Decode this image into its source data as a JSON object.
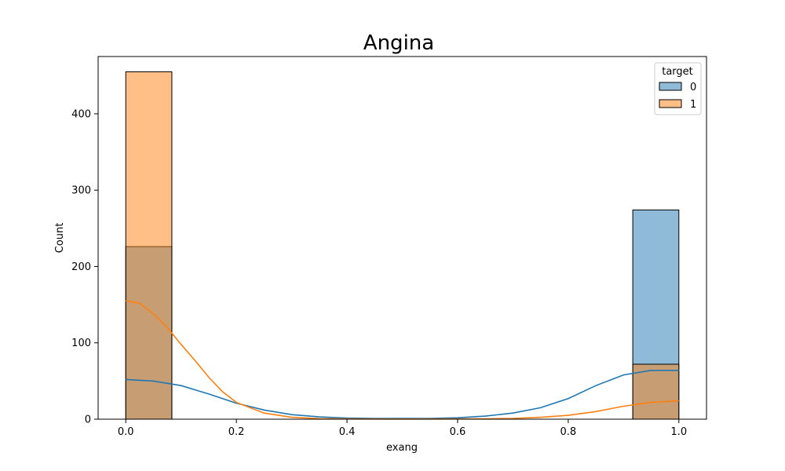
{
  "chart_data": {
    "type": "bar",
    "title": "Angina",
    "xlabel": "exang",
    "ylabel": "Count",
    "xlim": [
      -0.05,
      1.05
    ],
    "ylim": [
      0,
      475
    ],
    "xticks": [
      "0.0",
      "0.2",
      "0.4",
      "0.6",
      "0.8",
      "1.0"
    ],
    "xtick_values": [
      0.0,
      0.2,
      0.4,
      0.6,
      0.8,
      1.0
    ],
    "yticks": [
      "0",
      "100",
      "200",
      "300",
      "400"
    ],
    "ytick_values": [
      0,
      100,
      200,
      300,
      400
    ],
    "grid": false,
    "legend": {
      "title": "target",
      "placement": "top-right",
      "entries": [
        {
          "label": "0",
          "color": "#1f77b4"
        },
        {
          "label": "1",
          "color": "#ff7f0e"
        }
      ]
    },
    "bins": [
      {
        "x_start": 0.0,
        "x_end": 0.0833
      },
      {
        "x_start": 0.9167,
        "x_end": 1.0
      }
    ],
    "series": [
      {
        "name": "0",
        "color": "#1f77b4",
        "counts": [
          226,
          274
        ],
        "kde": [
          [
            0,
            52
          ],
          [
            0.05,
            50
          ],
          [
            0.1,
            44
          ],
          [
            0.15,
            33
          ],
          [
            0.2,
            21
          ],
          [
            0.25,
            12
          ],
          [
            0.3,
            6
          ],
          [
            0.35,
            3
          ],
          [
            0.4,
            1.5
          ],
          [
            0.45,
            1
          ],
          [
            0.5,
            1
          ],
          [
            0.55,
            1
          ],
          [
            0.6,
            1.8
          ],
          [
            0.65,
            4
          ],
          [
            0.7,
            8
          ],
          [
            0.75,
            15
          ],
          [
            0.8,
            27
          ],
          [
            0.85,
            44
          ],
          [
            0.9,
            58
          ],
          [
            0.95,
            64
          ],
          [
            1.0,
            64
          ]
        ]
      },
      {
        "name": "1",
        "color": "#ff7f0e",
        "counts": [
          455,
          72
        ],
        "kde": [
          [
            0,
            155
          ],
          [
            0.025,
            152
          ],
          [
            0.05,
            138
          ],
          [
            0.075,
            120
          ],
          [
            0.1,
            98
          ],
          [
            0.125,
            77
          ],
          [
            0.15,
            55
          ],
          [
            0.175,
            36
          ],
          [
            0.2,
            22
          ],
          [
            0.25,
            8
          ],
          [
            0.3,
            2.5
          ],
          [
            0.35,
            0.7
          ],
          [
            0.4,
            0.3
          ],
          [
            0.5,
            0.2
          ],
          [
            0.6,
            0.3
          ],
          [
            0.65,
            0.5
          ],
          [
            0.7,
            1
          ],
          [
            0.75,
            2.5
          ],
          [
            0.8,
            5
          ],
          [
            0.85,
            10
          ],
          [
            0.9,
            17
          ],
          [
            0.95,
            22
          ],
          [
            1.0,
            24
          ]
        ]
      }
    ]
  }
}
